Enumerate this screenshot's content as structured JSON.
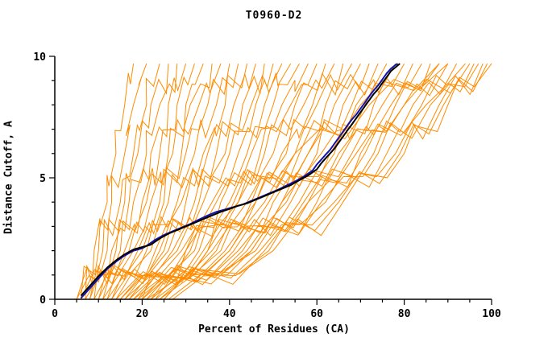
{
  "chart_data": {
    "type": "line",
    "title": "T0960-D2",
    "xlabel": "Percent of Residues (CA)",
    "ylabel": "Distance Cutoff, A",
    "xlim": [
      0,
      100
    ],
    "ylim": [
      0,
      10
    ],
    "x_major_ticks": [
      0,
      20,
      40,
      60,
      80,
      100
    ],
    "x_minor_step": 5,
    "y_major_ticks": [
      0,
      5,
      10
    ],
    "y_minor_step": 1,
    "grid": false,
    "legend": "none",
    "colors": {
      "ensemble": "#FF8C00",
      "highlight_blue": "#1414AA",
      "highlight_black": "#000000",
      "axis": "#000000",
      "background": "#FFFFFF"
    },
    "ensemble": {
      "description": "orange model curves: x positions at fixed distance-cutoff levels",
      "y_levels": [
        0,
        2,
        4,
        6,
        8,
        9.7
      ],
      "series_x": [
        [
          5,
          9,
          12,
          14,
          16,
          18
        ],
        [
          6,
          10,
          13,
          16,
          18,
          21
        ],
        [
          7,
          11,
          15,
          18,
          21,
          24
        ],
        [
          5,
          12,
          16,
          19,
          22,
          26
        ],
        [
          8,
          13,
          17,
          21,
          24,
          28
        ],
        [
          6,
          14,
          18,
          22,
          26,
          30
        ],
        [
          9,
          15,
          20,
          24,
          28,
          32
        ],
        [
          7,
          16,
          21,
          26,
          30,
          34
        ],
        [
          10,
          17,
          22,
          27,
          31,
          36
        ],
        [
          8,
          18,
          24,
          29,
          33,
          38
        ],
        [
          11,
          19,
          25,
          30,
          35,
          40
        ],
        [
          9,
          20,
          26,
          32,
          37,
          42
        ],
        [
          12,
          21,
          28,
          34,
          39,
          44
        ],
        [
          10,
          22,
          29,
          35,
          41,
          46
        ],
        [
          13,
          23,
          30,
          37,
          43,
          48
        ],
        [
          11,
          24,
          32,
          39,
          45,
          50
        ],
        [
          14,
          25,
          33,
          40,
          46,
          52
        ],
        [
          12,
          26,
          34,
          42,
          48,
          54
        ],
        [
          15,
          27,
          36,
          44,
          50,
          56
        ],
        [
          13,
          28,
          37,
          45,
          52,
          58
        ],
        [
          16,
          29,
          38,
          47,
          54,
          60
        ],
        [
          14,
          30,
          40,
          48,
          55,
          62
        ],
        [
          17,
          31,
          41,
          50,
          57,
          64
        ],
        [
          15,
          32,
          42,
          52,
          59,
          66
        ],
        [
          18,
          33,
          44,
          53,
          60,
          68
        ],
        [
          16,
          34,
          45,
          55,
          62,
          70
        ],
        [
          19,
          35,
          46,
          56,
          64,
          72
        ],
        [
          17,
          36,
          48,
          58,
          66,
          74
        ],
        [
          20,
          37,
          49,
          60,
          68,
          76
        ],
        [
          18,
          38,
          50,
          61,
          69,
          78
        ],
        [
          21,
          39,
          52,
          63,
          71,
          80
        ],
        [
          19,
          40,
          53,
          64,
          73,
          82
        ],
        [
          22,
          41,
          54,
          66,
          75,
          84
        ],
        [
          20,
          42,
          56,
          68,
          77,
          86
        ],
        [
          23,
          43,
          57,
          69,
          78,
          88
        ],
        [
          21,
          44,
          58,
          71,
          80,
          90
        ],
        [
          24,
          45,
          60,
          73,
          82,
          92
        ],
        [
          22,
          46,
          61,
          74,
          84,
          94
        ],
        [
          25,
          47,
          62,
          76,
          86,
          96
        ],
        [
          23,
          48,
          64,
          78,
          88,
          98
        ],
        [
          26,
          49,
          65,
          79,
          89,
          99
        ],
        [
          24,
          50,
          66,
          80,
          90,
          100
        ],
        [
          27,
          45,
          58,
          70,
          85,
          97
        ],
        [
          25,
          40,
          52,
          65,
          80,
          95
        ],
        [
          22,
          35,
          46,
          58,
          72,
          90
        ],
        [
          20,
          30,
          42,
          55,
          70,
          88
        ]
      ]
    },
    "highlight_series": [
      {
        "name": "model-blue",
        "color": "#1414AA",
        "width": 2,
        "points": [
          [
            6,
            0.05
          ],
          [
            8,
            0.45
          ],
          [
            10,
            0.85
          ],
          [
            12,
            1.25
          ],
          [
            14,
            1.55
          ],
          [
            16,
            1.8
          ],
          [
            18,
            2.0
          ],
          [
            20,
            2.1
          ],
          [
            21,
            2.2
          ],
          [
            23,
            2.45
          ],
          [
            25,
            2.65
          ],
          [
            27,
            2.8
          ],
          [
            29,
            2.95
          ],
          [
            31,
            3.1
          ],
          [
            33,
            3.28
          ],
          [
            35,
            3.45
          ],
          [
            37,
            3.6
          ],
          [
            39,
            3.7
          ],
          [
            41,
            3.8
          ],
          [
            43,
            3.9
          ],
          [
            45,
            4.05
          ],
          [
            47,
            4.2
          ],
          [
            49,
            4.35
          ],
          [
            51,
            4.5
          ],
          [
            53,
            4.68
          ],
          [
            55,
            4.85
          ],
          [
            57,
            5.05
          ],
          [
            59,
            5.3
          ],
          [
            60,
            5.55
          ],
          [
            61,
            5.75
          ],
          [
            62,
            5.95
          ],
          [
            63,
            6.15
          ],
          [
            64,
            6.4
          ],
          [
            65,
            6.65
          ],
          [
            66,
            6.9
          ],
          [
            67,
            7.15
          ],
          [
            68,
            7.4
          ],
          [
            69,
            7.6
          ],
          [
            70,
            7.85
          ],
          [
            71,
            8.1
          ],
          [
            72,
            8.35
          ],
          [
            73,
            8.6
          ],
          [
            74,
            8.8
          ],
          [
            75,
            9.05
          ],
          [
            76,
            9.3
          ],
          [
            77,
            9.5
          ],
          [
            78,
            9.65
          ],
          [
            78.5,
            9.7
          ]
        ]
      },
      {
        "name": "model-black",
        "color": "#000000",
        "width": 2,
        "points": [
          [
            6,
            0.15
          ],
          [
            8,
            0.55
          ],
          [
            10,
            0.95
          ],
          [
            12,
            1.3
          ],
          [
            14,
            1.6
          ],
          [
            16,
            1.85
          ],
          [
            18,
            2.05
          ],
          [
            20,
            2.15
          ],
          [
            22,
            2.25
          ],
          [
            24,
            2.5
          ],
          [
            26,
            2.7
          ],
          [
            28,
            2.85
          ],
          [
            30,
            3.0
          ],
          [
            32,
            3.15
          ],
          [
            34,
            3.3
          ],
          [
            36,
            3.45
          ],
          [
            38,
            3.6
          ],
          [
            40,
            3.72
          ],
          [
            42,
            3.85
          ],
          [
            44,
            3.95
          ],
          [
            46,
            4.1
          ],
          [
            48,
            4.25
          ],
          [
            50,
            4.4
          ],
          [
            52,
            4.55
          ],
          [
            54,
            4.7
          ],
          [
            56,
            4.9
          ],
          [
            58,
            5.1
          ],
          [
            60,
            5.35
          ],
          [
            61,
            5.6
          ],
          [
            62,
            5.8
          ],
          [
            63,
            6.0
          ],
          [
            64,
            6.2
          ],
          [
            65,
            6.45
          ],
          [
            66,
            6.7
          ],
          [
            67,
            6.95
          ],
          [
            68,
            7.2
          ],
          [
            69,
            7.45
          ],
          [
            70,
            7.7
          ],
          [
            71,
            7.95
          ],
          [
            72,
            8.2
          ],
          [
            73,
            8.45
          ],
          [
            74,
            8.65
          ],
          [
            75,
            8.9
          ],
          [
            76,
            9.15
          ],
          [
            77,
            9.4
          ],
          [
            78,
            9.55
          ],
          [
            79,
            9.7
          ]
        ]
      }
    ]
  }
}
